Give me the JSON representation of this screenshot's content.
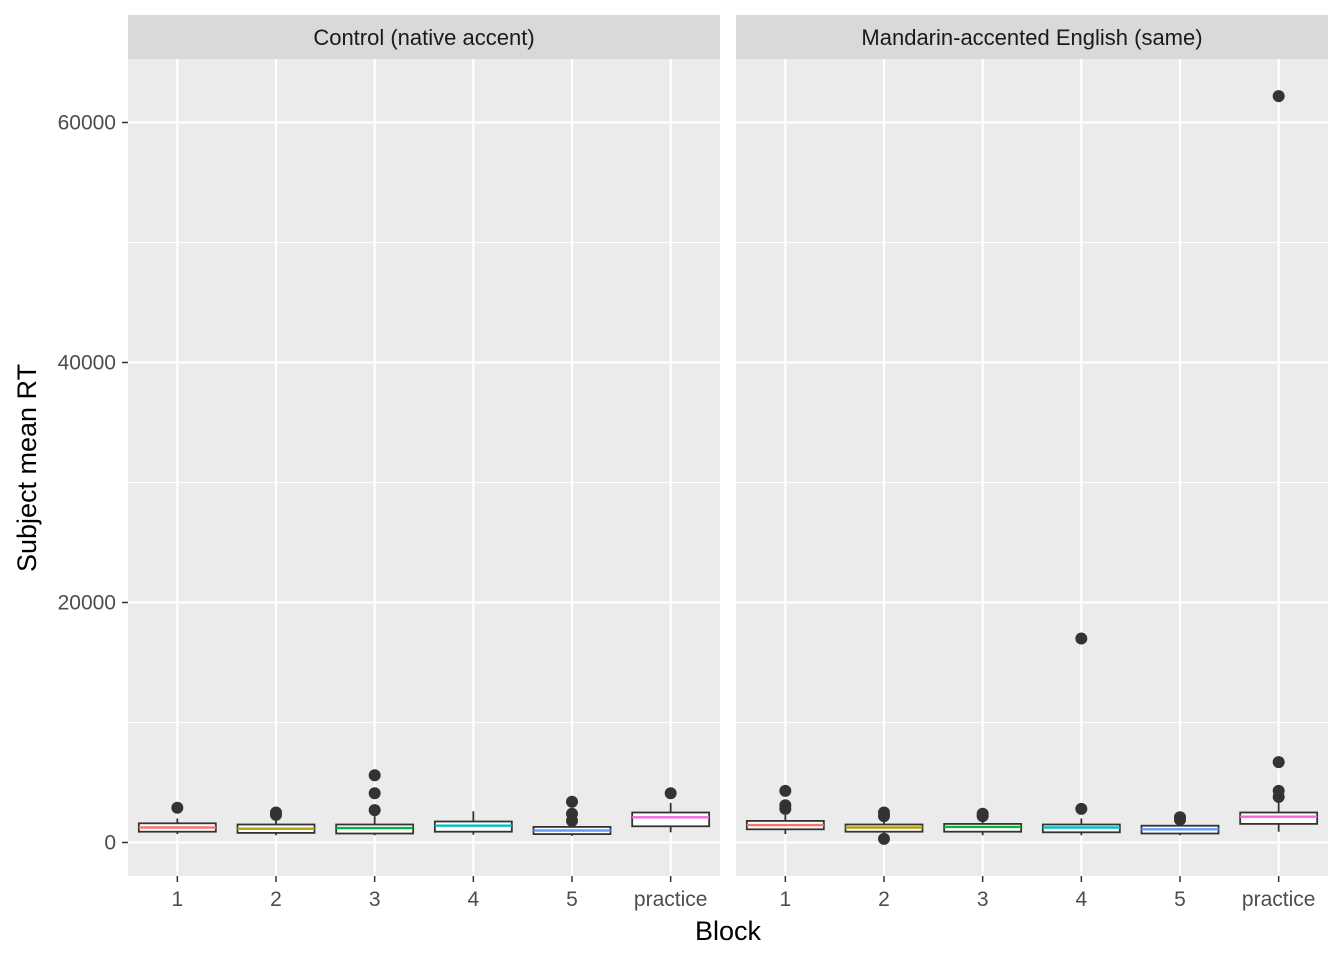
{
  "chart_data": {
    "type": "boxplot",
    "xlabel": "Block",
    "ylabel": "Subject mean RT",
    "ylim": [
      -2800,
      68000
    ],
    "yticks": [
      0,
      20000,
      40000,
      60000
    ],
    "ytick_labels": [
      "0",
      "20000",
      "40000",
      "60000"
    ],
    "categories": [
      "1",
      "2",
      "3",
      "4",
      "5",
      "practice"
    ],
    "grid": true,
    "legend": "none",
    "colors": {
      "1": "#F8766D",
      "2": "#B79F00",
      "3": "#00BA38",
      "4": "#00BFC4",
      "5": "#619CFF",
      "practice": "#F564E3"
    },
    "panels": [
      {
        "title": "Control (native accent)",
        "boxes": [
          {
            "category": "1",
            "q1": 900,
            "median": 1250,
            "q3": 1600,
            "whisker_low": 700,
            "whisker_high": 2000,
            "outliers": [
              2900
            ]
          },
          {
            "category": "2",
            "q1": 800,
            "median": 1150,
            "q3": 1500,
            "whisker_low": 600,
            "whisker_high": 2000,
            "outliers": [
              2300,
              2500
            ]
          },
          {
            "category": "3",
            "q1": 750,
            "median": 1200,
            "q3": 1500,
            "whisker_low": 600,
            "whisker_high": 2200,
            "outliers": [
              2700,
              4100,
              5600
            ]
          },
          {
            "category": "4",
            "q1": 900,
            "median": 1400,
            "q3": 1750,
            "whisker_low": 650,
            "whisker_high": 2600,
            "outliers": []
          },
          {
            "category": "5",
            "q1": 700,
            "median": 1000,
            "q3": 1300,
            "whisker_low": 550,
            "whisker_high": 1600,
            "outliers": [
              1800,
              2400,
              3400
            ]
          },
          {
            "category": "practice",
            "q1": 1350,
            "median": 2100,
            "q3": 2500,
            "whisker_low": 850,
            "whisker_high": 3300,
            "outliers": [
              4100
            ]
          }
        ]
      },
      {
        "title": "Mandarin-accented English (same)",
        "boxes": [
          {
            "category": "1",
            "q1": 1100,
            "median": 1450,
            "q3": 1800,
            "whisker_low": 700,
            "whisker_high": 2300,
            "outliers": [
              2800,
              3100,
              4300
            ]
          },
          {
            "category": "2",
            "q1": 900,
            "median": 1250,
            "q3": 1500,
            "whisker_low": 500,
            "whisker_high": 1900,
            "outliers": [
              300,
              2200,
              2500
            ]
          },
          {
            "category": "3",
            "q1": 900,
            "median": 1300,
            "q3": 1550,
            "whisker_low": 600,
            "whisker_high": 2000,
            "outliers": [
              2200,
              2400
            ]
          },
          {
            "category": "4",
            "q1": 850,
            "median": 1250,
            "q3": 1500,
            "whisker_low": 600,
            "whisker_high": 2000,
            "outliers": [
              2800,
              17000
            ]
          },
          {
            "category": "5",
            "q1": 750,
            "median": 1100,
            "q3": 1400,
            "whisker_low": 600,
            "whisker_high": 1800,
            "outliers": [
              1900,
              2100
            ]
          },
          {
            "category": "practice",
            "q1": 1550,
            "median": 2150,
            "q3": 2500,
            "whisker_low": 900,
            "whisker_high": 3400,
            "outliers": [
              3800,
              4300,
              6700,
              62200
            ]
          }
        ]
      }
    ]
  }
}
